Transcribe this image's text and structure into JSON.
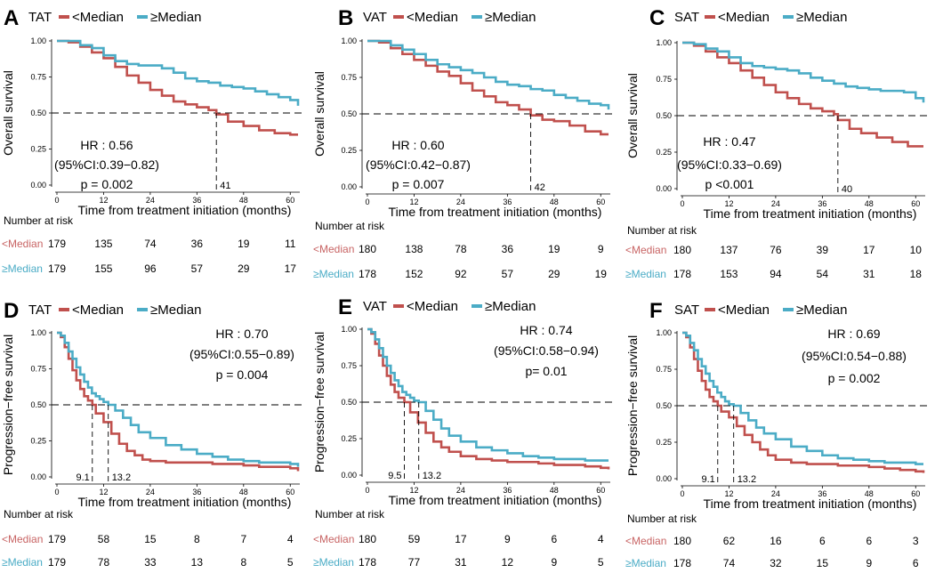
{
  "colors": {
    "below": "#C0504D",
    "above": "#4BACC6",
    "text": "#000000",
    "below_label": "#C86464",
    "above_label": "#4BACC6"
  },
  "legend": {
    "below": "<Median",
    "above": "≥Median"
  },
  "risk_title": "Number at risk",
  "risk_row_labels": {
    "below": "<Median",
    "above": "≥Median"
  },
  "xlabel": "Time from treatment initiation (months)",
  "chart_data": [
    {
      "type": "line",
      "panel": "A",
      "group": "TAT",
      "ylabel": "Overall survival",
      "xlim": [
        0,
        62
      ],
      "ylim": [
        0,
        1
      ],
      "x_ticks": [
        "0",
        "12",
        "24",
        "36",
        "48",
        "60"
      ],
      "y_ticks": [
        "0.00",
        "0.25",
        "0.50",
        "0.75",
        "1.00"
      ],
      "annotations": [
        "HR : 0.56",
        "(95%CI:0.39−0.82)",
        "p = 0.002"
      ],
      "median_marks": [
        {
          "x": 41,
          "label": "41"
        }
      ],
      "series": [
        {
          "name": "<Median",
          "x": [
            0,
            3,
            6,
            9,
            12,
            15,
            18,
            21,
            24,
            27,
            30,
            33,
            36,
            39,
            41,
            44,
            48,
            52,
            56,
            60,
            62
          ],
          "y": [
            1.0,
            0.99,
            0.96,
            0.92,
            0.88,
            0.82,
            0.76,
            0.71,
            0.66,
            0.62,
            0.58,
            0.56,
            0.54,
            0.52,
            0.49,
            0.44,
            0.41,
            0.38,
            0.36,
            0.35,
            0.35
          ]
        },
        {
          "name": "≥Median",
          "x": [
            0,
            3,
            6,
            9,
            12,
            15,
            18,
            21,
            24,
            27,
            30,
            33,
            36,
            39,
            42,
            45,
            48,
            51,
            54,
            57,
            60,
            62
          ],
          "y": [
            1.0,
            1.0,
            0.97,
            0.95,
            0.9,
            0.86,
            0.84,
            0.83,
            0.83,
            0.81,
            0.78,
            0.74,
            0.72,
            0.71,
            0.69,
            0.68,
            0.67,
            0.65,
            0.63,
            0.61,
            0.59,
            0.55
          ]
        }
      ],
      "risk": {
        "below": [
          "179",
          "135",
          "74",
          "36",
          "19",
          "11"
        ],
        "above": [
          "179",
          "155",
          "96",
          "57",
          "29",
          "17"
        ]
      }
    },
    {
      "type": "line",
      "panel": "B",
      "group": "VAT",
      "ylabel": "Overall survival",
      "xlim": [
        0,
        62
      ],
      "ylim": [
        0,
        1
      ],
      "x_ticks": [
        "0",
        "12",
        "24",
        "36",
        "48",
        "60"
      ],
      "y_ticks": [
        "0.00",
        "0.25",
        "0.50",
        "0.75",
        "1.00"
      ],
      "annotations": [
        "HR : 0.60",
        "(95%CI:0.42−0.87)",
        "p = 0.007"
      ],
      "median_marks": [
        {
          "x": 42,
          "label": "42"
        }
      ],
      "series": [
        {
          "name": "<Median",
          "x": [
            0,
            3,
            6,
            9,
            12,
            15,
            18,
            21,
            24,
            27,
            30,
            33,
            36,
            39,
            42,
            45,
            48,
            52,
            56,
            60,
            62
          ],
          "y": [
            1.0,
            0.99,
            0.95,
            0.91,
            0.87,
            0.83,
            0.79,
            0.76,
            0.71,
            0.66,
            0.62,
            0.58,
            0.56,
            0.53,
            0.49,
            0.46,
            0.45,
            0.42,
            0.38,
            0.36,
            0.36
          ]
        },
        {
          "name": "≥Median",
          "x": [
            0,
            3,
            6,
            9,
            12,
            15,
            18,
            21,
            24,
            27,
            30,
            33,
            36,
            39,
            42,
            45,
            48,
            51,
            54,
            57,
            60,
            62
          ],
          "y": [
            1.0,
            1.0,
            0.97,
            0.94,
            0.91,
            0.87,
            0.84,
            0.82,
            0.8,
            0.78,
            0.75,
            0.72,
            0.7,
            0.69,
            0.67,
            0.66,
            0.63,
            0.61,
            0.59,
            0.57,
            0.56,
            0.53
          ]
        }
      ],
      "risk": {
        "below": [
          "180",
          "138",
          "78",
          "36",
          "19",
          "9"
        ],
        "above": [
          "178",
          "152",
          "92",
          "57",
          "29",
          "19"
        ]
      }
    },
    {
      "type": "line",
      "panel": "C",
      "group": "SAT",
      "ylabel": "Overall survival",
      "xlim": [
        0,
        62
      ],
      "ylim": [
        0,
        1
      ],
      "x_ticks": [
        "0",
        "12",
        "24",
        "36",
        "48",
        "60"
      ],
      "y_ticks": [
        "0.00",
        "0.25",
        "0.50",
        "0.75",
        "1.00"
      ],
      "annotations": [
        "HR : 0.47",
        "(95%CI:0.33−0.69)",
        "p <0.001"
      ],
      "median_marks": [
        {
          "x": 40,
          "label": "40"
        }
      ],
      "series": [
        {
          "name": "<Median",
          "x": [
            0,
            3,
            6,
            9,
            12,
            15,
            18,
            21,
            24,
            27,
            30,
            33,
            36,
            39,
            40,
            43,
            46,
            50,
            54,
            58,
            62
          ],
          "y": [
            1.0,
            0.98,
            0.94,
            0.9,
            0.86,
            0.81,
            0.76,
            0.71,
            0.66,
            0.62,
            0.58,
            0.55,
            0.53,
            0.51,
            0.47,
            0.41,
            0.38,
            0.35,
            0.32,
            0.29,
            0.29
          ]
        },
        {
          "name": "≥Median",
          "x": [
            0,
            3,
            6,
            9,
            12,
            15,
            18,
            21,
            24,
            27,
            30,
            33,
            36,
            39,
            42,
            45,
            48,
            51,
            54,
            57,
            60,
            62
          ],
          "y": [
            1.0,
            0.99,
            0.96,
            0.94,
            0.9,
            0.86,
            0.84,
            0.83,
            0.82,
            0.81,
            0.79,
            0.76,
            0.74,
            0.72,
            0.7,
            0.69,
            0.68,
            0.67,
            0.67,
            0.66,
            0.62,
            0.59
          ]
        }
      ],
      "risk": {
        "below": [
          "180",
          "137",
          "76",
          "39",
          "17",
          "10"
        ],
        "above": [
          "178",
          "153",
          "94",
          "54",
          "31",
          "18"
        ]
      }
    },
    {
      "type": "line",
      "panel": "D",
      "group": "TAT",
      "ylabel": "Progression−free survival",
      "xlim": [
        0,
        62
      ],
      "ylim": [
        0,
        1
      ],
      "x_ticks": [
        "0",
        "12",
        "24",
        "36",
        "48",
        "60"
      ],
      "y_ticks": [
        "0.00",
        "0.25",
        "0.50",
        "0.75",
        "1.00"
      ],
      "annotations": [
        "HR : 0.70",
        "(95%CI:0.55−0.89)",
        "p = 0.004"
      ],
      "median_marks": [
        {
          "x": 9.1,
          "label": "9.1"
        },
        {
          "x": 13.2,
          "label": "13.2"
        }
      ],
      "series": [
        {
          "name": "<Median",
          "x": [
            0,
            1,
            2,
            3,
            4,
            5,
            6,
            7,
            8,
            9.1,
            10,
            12,
            14,
            16,
            18,
            20,
            22,
            24,
            28,
            32,
            36,
            40,
            44,
            48,
            52,
            56,
            60,
            62
          ],
          "y": [
            1.0,
            0.97,
            0.9,
            0.82,
            0.74,
            0.67,
            0.61,
            0.56,
            0.53,
            0.5,
            0.44,
            0.38,
            0.3,
            0.23,
            0.18,
            0.15,
            0.12,
            0.11,
            0.1,
            0.1,
            0.1,
            0.09,
            0.09,
            0.08,
            0.07,
            0.07,
            0.06,
            0.04
          ]
        },
        {
          "name": "≥Median",
          "x": [
            0,
            1,
            2,
            3,
            4,
            5,
            6,
            7,
            8,
            9,
            10,
            11,
            12,
            13.2,
            15,
            17,
            19,
            21,
            24,
            28,
            32,
            36,
            40,
            44,
            48,
            52,
            56,
            60,
            62
          ],
          "y": [
            1.0,
            0.98,
            0.93,
            0.87,
            0.82,
            0.76,
            0.71,
            0.66,
            0.62,
            0.58,
            0.56,
            0.54,
            0.52,
            0.5,
            0.46,
            0.41,
            0.36,
            0.31,
            0.27,
            0.22,
            0.19,
            0.16,
            0.14,
            0.12,
            0.11,
            0.1,
            0.1,
            0.09,
            0.07
          ]
        }
      ],
      "risk": {
        "below": [
          "179",
          "58",
          "15",
          "8",
          "7",
          "4"
        ],
        "above": [
          "179",
          "78",
          "33",
          "13",
          "8",
          "5"
        ]
      }
    },
    {
      "type": "line",
      "panel": "E",
      "group": "VAT",
      "ylabel": "Progression−free survival",
      "xlim": [
        0,
        62
      ],
      "ylim": [
        0,
        1
      ],
      "x_ticks": [
        "0",
        "12",
        "24",
        "36",
        "48",
        "60"
      ],
      "y_ticks": [
        "0.00",
        "0.25",
        "0.50",
        "0.75",
        "1.00"
      ],
      "annotations": [
        "HR : 0.74",
        "(95%CI:0.58−0.94)",
        "p= 0.01"
      ],
      "median_marks": [
        {
          "x": 9.5,
          "label": "9.5"
        },
        {
          "x": 13.2,
          "label": "13.2"
        }
      ],
      "series": [
        {
          "name": "<Median",
          "x": [
            0,
            1,
            2,
            3,
            4,
            5,
            6,
            7,
            8,
            9.5,
            11,
            13,
            15,
            17,
            19,
            21,
            24,
            28,
            32,
            36,
            40,
            44,
            48,
            52,
            56,
            60,
            62
          ],
          "y": [
            1.0,
            0.97,
            0.9,
            0.82,
            0.75,
            0.68,
            0.62,
            0.57,
            0.53,
            0.5,
            0.43,
            0.36,
            0.29,
            0.23,
            0.19,
            0.16,
            0.13,
            0.11,
            0.1,
            0.09,
            0.09,
            0.08,
            0.07,
            0.07,
            0.06,
            0.05,
            0.04
          ]
        },
        {
          "name": "≥Median",
          "x": [
            0,
            1,
            2,
            3,
            4,
            5,
            6,
            7,
            8,
            9,
            10,
            11,
            12,
            13.2,
            15,
            17,
            19,
            21,
            24,
            28,
            32,
            36,
            40,
            44,
            48,
            52,
            56,
            60,
            62
          ],
          "y": [
            1.0,
            0.98,
            0.93,
            0.87,
            0.81,
            0.75,
            0.7,
            0.65,
            0.61,
            0.57,
            0.55,
            0.53,
            0.51,
            0.5,
            0.44,
            0.38,
            0.32,
            0.27,
            0.23,
            0.19,
            0.17,
            0.15,
            0.13,
            0.12,
            0.11,
            0.11,
            0.1,
            0.1,
            0.1
          ]
        }
      ],
      "risk": {
        "below": [
          "180",
          "59",
          "17",
          "9",
          "6",
          "4"
        ],
        "above": [
          "178",
          "77",
          "31",
          "12",
          "9",
          "5"
        ]
      }
    },
    {
      "type": "line",
      "panel": "F",
      "group": "SAT",
      "ylabel": "Progression−free survival",
      "xlim": [
        0,
        62
      ],
      "ylim": [
        0,
        1
      ],
      "x_ticks": [
        "0",
        "12",
        "24",
        "36",
        "48",
        "60"
      ],
      "y_ticks": [
        "0.00",
        "0.25",
        "0.50",
        "0.75",
        "1.00"
      ],
      "annotations": [
        "HR : 0.69",
        "(95%CI:0.54−0.88)",
        "p = 0.002"
      ],
      "median_marks": [
        {
          "x": 9.1,
          "label": "9.1"
        },
        {
          "x": 13.2,
          "label": "13.2"
        }
      ],
      "series": [
        {
          "name": "<Median",
          "x": [
            0,
            1,
            2,
            3,
            4,
            5,
            6,
            7,
            8,
            9.1,
            10,
            12,
            14,
            16,
            18,
            20,
            22,
            24,
            28,
            32,
            36,
            40,
            44,
            48,
            52,
            56,
            60,
            62
          ],
          "y": [
            1.0,
            0.97,
            0.9,
            0.82,
            0.74,
            0.67,
            0.61,
            0.56,
            0.53,
            0.5,
            0.46,
            0.42,
            0.36,
            0.3,
            0.25,
            0.2,
            0.16,
            0.13,
            0.11,
            0.1,
            0.1,
            0.09,
            0.09,
            0.08,
            0.07,
            0.06,
            0.05,
            0.04
          ]
        },
        {
          "name": "≥Median",
          "x": [
            0,
            1,
            2,
            3,
            4,
            5,
            6,
            7,
            8,
            9,
            10,
            11,
            12,
            13.2,
            15,
            17,
            19,
            21,
            24,
            28,
            32,
            36,
            40,
            44,
            48,
            52,
            56,
            60,
            62
          ],
          "y": [
            1.0,
            0.98,
            0.93,
            0.88,
            0.82,
            0.77,
            0.72,
            0.67,
            0.63,
            0.59,
            0.56,
            0.53,
            0.51,
            0.5,
            0.45,
            0.4,
            0.35,
            0.31,
            0.27,
            0.22,
            0.19,
            0.16,
            0.14,
            0.13,
            0.12,
            0.11,
            0.11,
            0.1,
            0.1
          ]
        }
      ],
      "risk": {
        "below": [
          "180",
          "62",
          "16",
          "6",
          "6",
          "3"
        ],
        "above": [
          "178",
          "74",
          "32",
          "15",
          "9",
          "6"
        ]
      }
    }
  ]
}
